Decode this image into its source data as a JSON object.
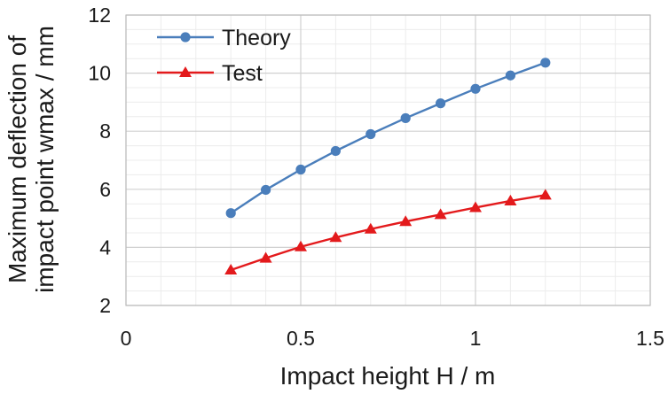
{
  "chart_data": {
    "type": "line",
    "title": "",
    "xlabel": "Impact height H / m",
    "ylabel_lines": [
      "Maximum deflection of",
      "impact point wmax / mm"
    ],
    "xlim": [
      0,
      1.5
    ],
    "ylim": [
      2,
      12
    ],
    "xticks": [
      0,
      0.5,
      1,
      1.5
    ],
    "xtick_labels": [
      "0",
      "0.5",
      "1",
      "1.5"
    ],
    "yticks": [
      2,
      4,
      6,
      8,
      10,
      12
    ],
    "ytick_labels": [
      "2",
      "4",
      "6",
      "8",
      "10",
      "12"
    ],
    "major_grid": true,
    "minor_grid": true,
    "legend_position": "top-left",
    "series": [
      {
        "name": "Theory",
        "color": "#4a7ebb",
        "marker": "circle",
        "x": [
          0.3,
          0.4,
          0.5,
          0.6,
          0.7,
          0.8,
          0.9,
          1.0,
          1.1,
          1.2
        ],
        "values": [
          5.18,
          5.98,
          6.68,
          7.32,
          7.9,
          8.45,
          8.96,
          9.46,
          9.92,
          10.36
        ]
      },
      {
        "name": "Test",
        "color": "#e31a1c",
        "marker": "triangle",
        "x": [
          0.3,
          0.4,
          0.5,
          0.6,
          0.7,
          0.8,
          0.9,
          1.0,
          1.1,
          1.2
        ],
        "values": [
          3.22,
          3.63,
          4.02,
          4.34,
          4.63,
          4.89,
          5.13,
          5.37,
          5.6,
          5.8
        ]
      }
    ]
  }
}
